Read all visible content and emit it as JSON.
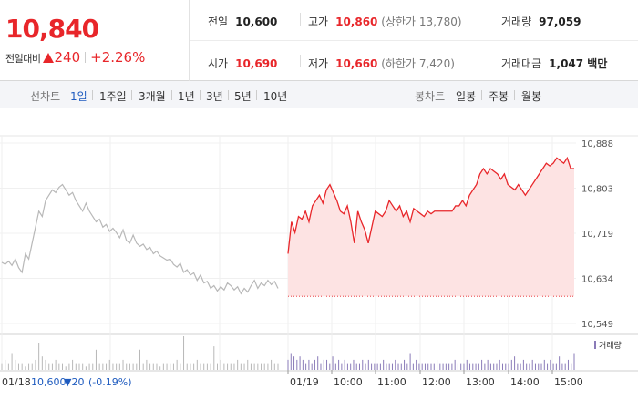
{
  "quote": {
    "current_price": "10,840",
    "change_label": "전일대비",
    "change_amount": "240",
    "change_percent": "+2.26%",
    "colors": {
      "up": "#e8262a",
      "down": "#1e5bbf"
    }
  },
  "stats": {
    "prev_close": {
      "label": "전일",
      "value": "10,600"
    },
    "high": {
      "label": "고가",
      "value": "10,860",
      "sub": "(상한가 13,780)"
    },
    "volume": {
      "label": "거래량",
      "value": "97,059"
    },
    "open": {
      "label": "시가",
      "value": "10,690"
    },
    "low": {
      "label": "저가",
      "value": "10,660",
      "sub": "(하한가 7,420)"
    },
    "trade_value": {
      "label": "거래대금",
      "value": "1,047 백만"
    }
  },
  "tabs": {
    "line_label": "선차트",
    "line_tabs": [
      "1일",
      "1주일",
      "3개월",
      "1년",
      "3년",
      "5년",
      "10년"
    ],
    "active_line_tab": "1일",
    "candle_label": "봉차트",
    "candle_tabs": [
      "일봉",
      "주봉",
      "월봉"
    ]
  },
  "chart_data": {
    "type": "line",
    "y_ticks": [
      "10,888",
      "10,803",
      "10,719",
      "10,634",
      "10,549"
    ],
    "ylim": [
      10549,
      10888
    ],
    "x_tick_labels": [
      "01/19",
      "10:00",
      "11:00",
      "12:00",
      "13:00",
      "14:00",
      "15:00"
    ],
    "volume_legend": "거래량",
    "prev_day_summary": {
      "date": "01/18",
      "close": "10,600",
      "change": "▼20",
      "percent": "(-0.19%)"
    },
    "series": [
      {
        "label": "01/18",
        "values": [
          10664,
          10660,
          10666,
          10658,
          10670,
          10654,
          10645,
          10680,
          10670,
          10700,
          10730,
          10760,
          10750,
          10780,
          10790,
          10800,
          10795,
          10805,
          10810,
          10800,
          10790,
          10795,
          10780,
          10770,
          10760,
          10775,
          10760,
          10750,
          10740,
          10745,
          10730,
          10735,
          10722,
          10728,
          10720,
          10710,
          10725,
          10705,
          10700,
          10715,
          10700,
          10694,
          10698,
          10688,
          10692,
          10680,
          10685,
          10676,
          10672,
          10668,
          10670,
          10660,
          10655,
          10662,
          10645,
          10650,
          10640,
          10644,
          10630,
          10640,
          10625,
          10628,
          10615,
          10620,
          10610,
          10618,
          10612,
          10625,
          10620,
          10612,
          10618,
          10605,
          10615,
          10608,
          10620,
          10630,
          10615,
          10625,
          10620,
          10630,
          10622,
          10628,
          10615
        ]
      },
      {
        "label": "01/19",
        "baseline": 10600,
        "values": [
          10680,
          10740,
          10720,
          10750,
          10745,
          10760,
          10740,
          10770,
          10780,
          10790,
          10775,
          10800,
          10810,
          10795,
          10780,
          10760,
          10755,
          10770,
          10740,
          10700,
          10760,
          10740,
          10725,
          10700,
          10730,
          10760,
          10755,
          10750,
          10760,
          10780,
          10770,
          10760,
          10770,
          10750,
          10760,
          10740,
          10765,
          10760,
          10755,
          10750,
          10760,
          10755,
          10760,
          10760,
          10760,
          10760,
          10760,
          10760,
          10770,
          10770,
          10780,
          10770,
          10790,
          10800,
          10810,
          10830,
          10840,
          10830,
          10840,
          10835,
          10830,
          10820,
          10830,
          10810,
          10805,
          10800,
          10810,
          10800,
          10790,
          10800,
          10810,
          10820,
          10830,
          10840,
          10850,
          10845,
          10850,
          10860,
          10855,
          10850,
          10860,
          10840,
          10840
        ]
      }
    ],
    "volume": [
      2,
      3,
      2,
      5,
      3,
      2,
      2,
      1,
      2,
      2,
      3,
      8,
      4,
      3,
      2,
      2,
      3,
      2,
      2,
      1,
      2,
      3,
      2,
      2,
      2,
      1,
      2,
      2,
      6,
      2,
      2,
      2,
      3,
      2,
      2,
      2,
      3,
      2,
      2,
      2,
      2,
      6,
      2,
      3,
      2,
      2,
      2,
      1,
      2,
      2,
      2,
      2,
      3,
      2,
      10,
      2,
      2,
      2,
      3,
      2,
      2,
      2,
      2,
      7,
      2,
      3,
      2,
      2,
      2,
      2,
      3,
      2,
      2,
      3,
      2,
      2,
      2,
      2,
      2,
      2,
      3,
      2,
      2,
      3,
      5,
      4,
      3,
      4,
      3,
      2,
      3,
      2,
      3,
      4,
      2,
      3,
      3,
      2,
      4,
      2,
      3,
      2,
      3,
      2,
      2,
      3,
      2,
      2,
      3,
      2,
      3,
      2,
      2,
      2,
      2,
      3,
      2,
      2,
      2,
      3,
      2,
      2,
      3,
      2,
      5,
      2,
      3,
      2,
      2,
      2,
      2,
      2,
      2,
      3,
      2,
      2,
      2,
      2,
      2,
      3,
      2,
      2,
      2,
      3,
      2,
      2,
      2,
      2,
      3,
      2,
      3,
      2,
      2,
      2,
      3,
      2,
      2,
      2,
      3,
      4,
      2,
      2,
      3,
      2,
      2,
      3,
      2,
      2,
      2,
      3,
      2,
      3,
      2,
      2,
      4,
      2,
      2,
      3,
      2,
      5
    ]
  }
}
